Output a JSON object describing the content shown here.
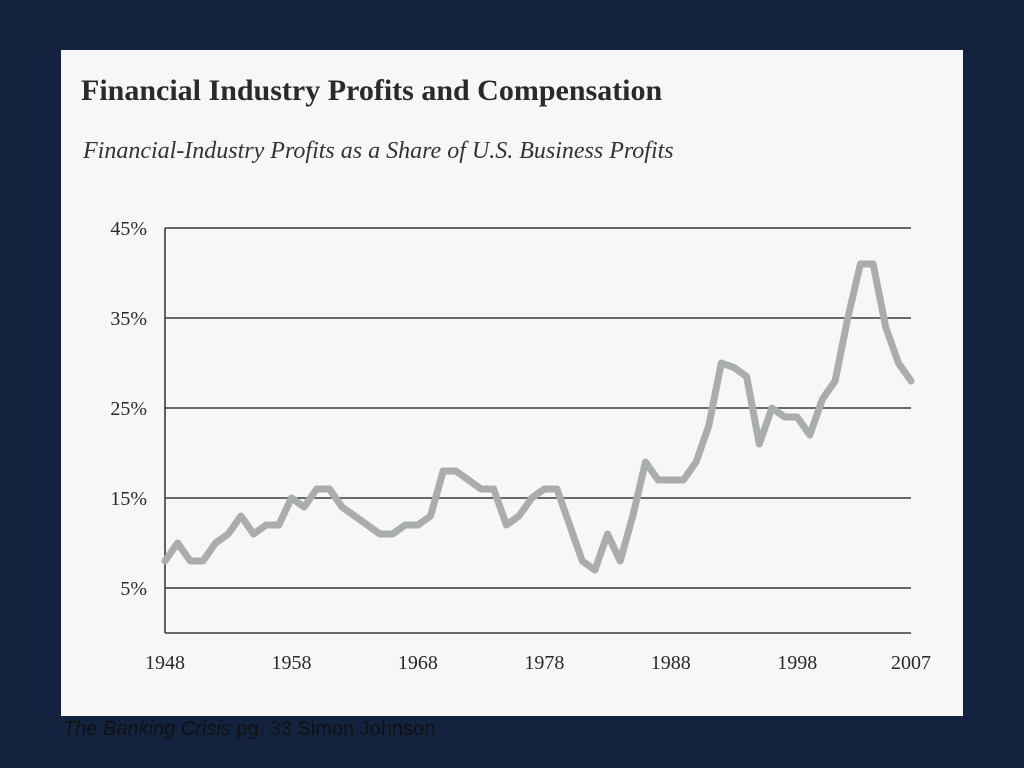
{
  "figure": {
    "title": "Financial Industry Profits and Compensation",
    "subtitle": "Financial-Industry Profits as a Share of U.S. Business Profits"
  },
  "caption": {
    "book_title": "The Banking Crisis",
    "source_text": " pg. 33 Simon Johnson"
  },
  "colors": {
    "page_background": "#13233f",
    "card_background": "#f7f7f5",
    "series_line": "#a9aeab",
    "grid_line": "#3a3a3a"
  },
  "chart_data": {
    "type": "line",
    "title": "Financial-Industry Profits as a Share of U.S. Business Profits",
    "xlabel": "",
    "ylabel": "",
    "xlim": [
      1948,
      2007
    ],
    "ylim": [
      0,
      45
    ],
    "y_ticks": [
      5,
      15,
      25,
      35,
      45
    ],
    "y_tick_labels": [
      "5%",
      "15%",
      "25%",
      "35%",
      "45%"
    ],
    "x_ticks": [
      1948,
      1958,
      1968,
      1978,
      1988,
      1998,
      2007
    ],
    "x_tick_labels": [
      "1948",
      "1958",
      "1968",
      "1978",
      "1988",
      "1998",
      "2007"
    ],
    "grid": "horizontal",
    "series": [
      {
        "x": [
          1948,
          1949,
          1950,
          1951,
          1952,
          1953,
          1954,
          1955,
          1956,
          1957,
          1958,
          1959,
          1960,
          1961,
          1962,
          1963,
          1964,
          1965,
          1966,
          1967,
          1968,
          1969,
          1970,
          1971,
          1972,
          1973,
          1974,
          1975,
          1976,
          1977,
          1978,
          1979,
          1980,
          1981,
          1982,
          1983,
          1984,
          1985,
          1986,
          1987,
          1988,
          1989,
          1990,
          1991,
          1992,
          1993,
          1994,
          1995,
          1996,
          1997,
          1998,
          1999,
          2000,
          2001,
          2002,
          2003,
          2004,
          2005,
          2006,
          2007
        ],
        "values": [
          8,
          10,
          8,
          8,
          10,
          11,
          13,
          11,
          12,
          12,
          15,
          14,
          16,
          16,
          14,
          13,
          12,
          11,
          11,
          12,
          12,
          13,
          18,
          18,
          17,
          16,
          16,
          12,
          13,
          15,
          16,
          16,
          12,
          8,
          7,
          11,
          8,
          13,
          19,
          17,
          17,
          17,
          19,
          23,
          30,
          29.5,
          28.5,
          21,
          25,
          24,
          24,
          22,
          26,
          28,
          35,
          41,
          41,
          34,
          30,
          28
        ]
      }
    ]
  }
}
